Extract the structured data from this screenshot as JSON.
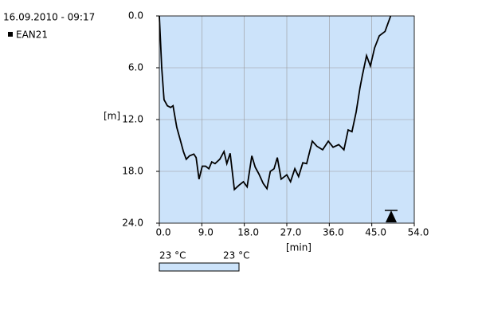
{
  "chart_data": {
    "type": "line",
    "timestamp": "16.09.2010 - 09:17",
    "xlabel": "[min]",
    "ylabel": "[m]",
    "y_inverted": true,
    "grid": true,
    "background": "#cce3fa",
    "xlim": [
      0,
      54
    ],
    "xticks": [
      {
        "value": 0,
        "label": "0.0"
      },
      {
        "value": 9,
        "label": "9.0"
      },
      {
        "value": 18,
        "label": "18.0"
      },
      {
        "value": 27,
        "label": "27.0"
      },
      {
        "value": 36,
        "label": "36.0"
      },
      {
        "value": 45,
        "label": "45.0"
      },
      {
        "value": 54,
        "label": "54.0"
      }
    ],
    "ylim": [
      0,
      24
    ],
    "yticks": [
      {
        "value": 0,
        "label": "0.0"
      },
      {
        "value": 6,
        "label": "6.0"
      },
      {
        "value": 12,
        "label": "12.0"
      },
      {
        "value": 18,
        "label": "18.0"
      },
      {
        "value": 24,
        "label": "24.0"
      }
    ],
    "series": [
      {
        "name": "EAN21",
        "color": "#000000",
        "x": [
          0,
          0.5,
          1,
          1.7,
          2.4,
          2.9,
          3.7,
          4.4,
          5.1,
          5.7,
          6.4,
          7.3,
          7.8,
          8.4,
          9.1,
          9.8,
          10.5,
          11.1,
          11.8,
          12.8,
          13.7,
          14.3,
          15,
          15.9,
          16.9,
          17.8,
          18.6,
          19.6,
          20.3,
          21.1,
          22,
          22.8,
          23.5,
          24.3,
          25,
          25.8,
          27,
          27.8,
          28.7,
          29.5,
          30.4,
          31.2,
          32.4,
          33.4,
          34.6,
          35.8,
          36.8,
          38,
          39.1,
          40,
          40.8,
          41.7,
          42.5,
          43,
          43.9,
          44.7,
          45.6,
          46.6,
          47.8,
          48.4,
          49
        ],
        "values": [
          0,
          6,
          9.7,
          10.4,
          10.6,
          10.4,
          12.9,
          14.3,
          15.7,
          16.6,
          16.2,
          16,
          16.4,
          18.9,
          17.4,
          17.4,
          17.7,
          16.9,
          17.1,
          16.6,
          15.7,
          17.1,
          15.9,
          20.1,
          19.6,
          19.2,
          19.8,
          16.2,
          17.5,
          18.3,
          19.4,
          20,
          18,
          17.7,
          16.4,
          18.9,
          18.4,
          19.2,
          17.7,
          18.6,
          17,
          17.1,
          14.5,
          15.1,
          15.5,
          14.5,
          15.2,
          14.9,
          15.5,
          13.2,
          13.4,
          11.1,
          8.3,
          6.9,
          4.6,
          5.8,
          3.7,
          2.3,
          1.8,
          0.9,
          0
        ]
      }
    ],
    "temperature_scale": {
      "min_label": "23 °C",
      "max_label": "23 °C",
      "color": "#cce3fa"
    }
  }
}
